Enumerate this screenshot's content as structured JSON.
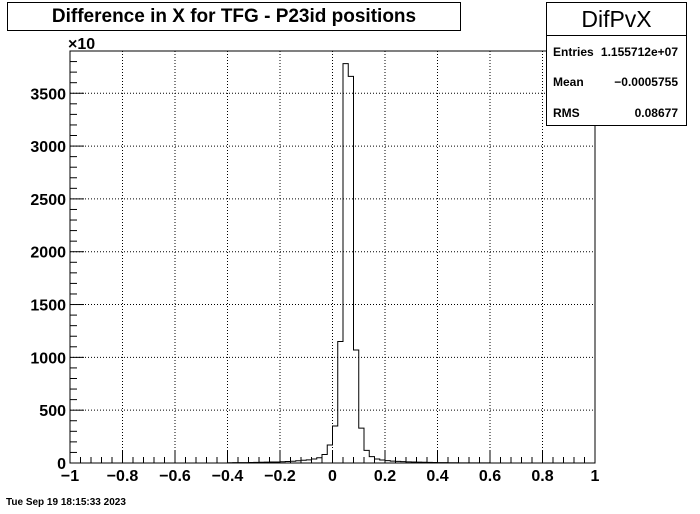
{
  "title": "Difference in X for TFG - P23id positions",
  "stats": {
    "name": "DifPvX",
    "rows": [
      {
        "label": "Entries",
        "value": "1.155712e+07"
      },
      {
        "label": "Mean",
        "value": "−0.0005755"
      },
      {
        "label": "RMS",
        "value": "0.08677"
      }
    ]
  },
  "timestamp": "Tue Sep 19 18:15:33 2023",
  "chart_data": {
    "type": "bar",
    "style": "step-histogram",
    "title": "Difference in X for TFG - P23id positions",
    "xlabel": "",
    "ylabel": "",
    "xlim": [
      -1,
      1
    ],
    "ylim": [
      0,
      3900
    ],
    "y_multiplier_label": "×10",
    "grid": true,
    "x_ticks": [
      -1,
      -0.8,
      -0.6,
      -0.4,
      -0.2,
      0,
      0.2,
      0.4,
      0.6,
      0.8,
      1
    ],
    "x_tick_labels": [
      "−1",
      "−0.8",
      "−0.6",
      "−0.4",
      "−0.2",
      "0",
      "0.2",
      "0.4",
      "0.6",
      "0.8",
      "1"
    ],
    "y_ticks": [
      0,
      500,
      1000,
      1500,
      2000,
      2500,
      3000,
      3500
    ],
    "y_tick_labels": [
      "0",
      "500",
      "1000",
      "1500",
      "2000",
      "2500",
      "3000",
      "3500"
    ],
    "bin_edges_start": -1,
    "bin_width": 0.02,
    "values": [
      0,
      0,
      0,
      0,
      0,
      0,
      0,
      0,
      0,
      0,
      0,
      0,
      0,
      0,
      0,
      0,
      0,
      0,
      0,
      0,
      0,
      0,
      0,
      0,
      0,
      0,
      0,
      0,
      0,
      0,
      2,
      3,
      4,
      4,
      5,
      6,
      7,
      8,
      9,
      10,
      12,
      14,
      17,
      21,
      26,
      30,
      38,
      50,
      80,
      170,
      350,
      1150,
      3780,
      3660,
      1070,
      330,
      120,
      60,
      38,
      28,
      22,
      18,
      15,
      13,
      11,
      9,
      8,
      7,
      6,
      5,
      4,
      3,
      2,
      2,
      1,
      1,
      1,
      1,
      1,
      1,
      0,
      0,
      0,
      0,
      0,
      0,
      0,
      0,
      0,
      0,
      0,
      0,
      0,
      0,
      0,
      0,
      0,
      0,
      0,
      0
    ]
  }
}
